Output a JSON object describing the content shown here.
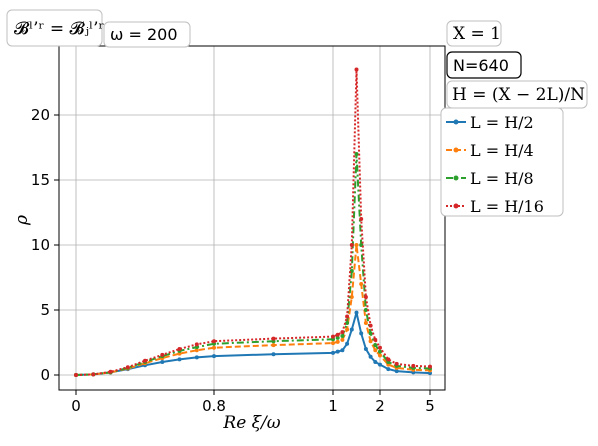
{
  "chart_data": {
    "type": "line",
    "xlabel": "Re ξ/ω",
    "ylabel": "ρ",
    "ylim": [
      -1,
      24.8
    ],
    "x_tick_labels": [
      "0",
      "0.8",
      "1",
      "2",
      "5"
    ],
    "y_ticks": [
      0,
      5,
      10,
      15,
      20
    ],
    "grid": true,
    "annotations": {
      "top_left": "𝓑ˡ’ʳ = 𝓑ⱼˡ’ʳ",
      "omega": "ω = 200",
      "X": "X = 1",
      "N": "N=640",
      "H": "H = (X − 2L)/N"
    },
    "legend_placement": "right, outside plot",
    "series": [
      {
        "name": "L = H/2",
        "color": "#1f77b4",
        "style": "solid",
        "x": [
          0,
          0.1,
          0.2,
          0.3,
          0.4,
          0.5,
          0.6,
          0.7,
          0.8,
          0.9,
          1.0,
          1.1,
          1.2,
          1.3,
          1.4,
          1.5,
          1.6,
          1.7,
          1.8,
          1.9,
          2.0,
          2.5,
          3,
          4,
          5
        ],
        "y": [
          0,
          0.05,
          0.2,
          0.45,
          0.75,
          1.0,
          1.2,
          1.35,
          1.45,
          1.6,
          1.7,
          1.8,
          1.9,
          2.4,
          3.5,
          4.8,
          3.2,
          2.0,
          1.4,
          1.0,
          0.8,
          0.45,
          0.3,
          0.2,
          0.15
        ]
      },
      {
        "name": "L = H/4",
        "color": "#ff7f0e",
        "style": "dashed",
        "x": [
          0,
          0.1,
          0.2,
          0.3,
          0.4,
          0.5,
          0.6,
          0.7,
          0.8,
          0.9,
          1.0,
          1.1,
          1.2,
          1.3,
          1.4,
          1.5,
          1.6,
          1.7,
          1.8,
          1.9,
          2.0,
          2.5,
          3,
          4,
          5
        ],
        "y": [
          0,
          0.05,
          0.2,
          0.5,
          0.9,
          1.3,
          1.65,
          1.9,
          2.1,
          2.3,
          2.45,
          2.55,
          2.7,
          3.5,
          6.0,
          10.0,
          7.0,
          4.0,
          2.6,
          1.9,
          1.5,
          0.8,
          0.55,
          0.4,
          0.35
        ]
      },
      {
        "name": "L = H/8",
        "color": "#2ca02c",
        "style": "dashdot",
        "x": [
          0,
          0.1,
          0.2,
          0.3,
          0.4,
          0.5,
          0.6,
          0.7,
          0.8,
          0.9,
          1.0,
          1.1,
          1.2,
          1.3,
          1.4,
          1.5,
          1.6,
          1.7,
          1.8,
          1.9,
          2.0,
          2.5,
          3,
          4,
          5
        ],
        "y": [
          0,
          0.05,
          0.2,
          0.55,
          1.0,
          1.45,
          1.85,
          2.15,
          2.4,
          2.6,
          2.75,
          2.85,
          3.0,
          4.0,
          8.0,
          17.0,
          10.0,
          5.0,
          3.2,
          2.3,
          1.8,
          1.0,
          0.7,
          0.55,
          0.5
        ]
      },
      {
        "name": "L = H/16",
        "color": "#d62728",
        "style": "dotted",
        "x": [
          0,
          0.1,
          0.2,
          0.3,
          0.4,
          0.5,
          0.6,
          0.7,
          0.8,
          0.9,
          1.0,
          1.1,
          1.2,
          1.3,
          1.4,
          1.5,
          1.6,
          1.7,
          1.8,
          1.9,
          2.0,
          2.5,
          3,
          4,
          5
        ],
        "y": [
          0,
          0.05,
          0.25,
          0.6,
          1.1,
          1.55,
          2.0,
          2.35,
          2.6,
          2.8,
          2.95,
          3.1,
          3.3,
          4.5,
          10.0,
          23.5,
          12.0,
          6.0,
          3.8,
          2.7,
          2.1,
          1.2,
          0.85,
          0.7,
          0.65
        ]
      }
    ]
  }
}
